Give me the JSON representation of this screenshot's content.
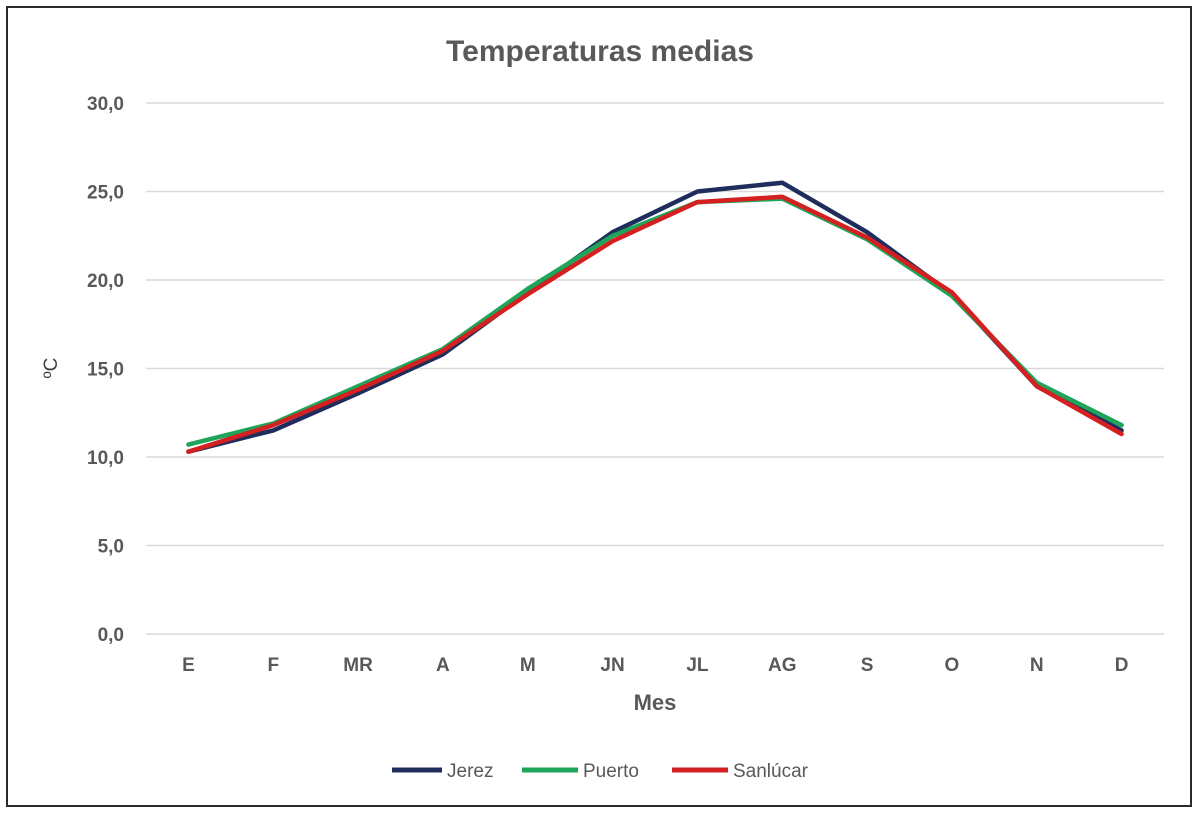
{
  "chart_data": {
    "type": "line",
    "title": "Temperaturas medias",
    "xlabel": "Mes",
    "ylabel": "ºC",
    "categories": [
      "E",
      "F",
      "MR",
      "A",
      "M",
      "JN",
      "JL",
      "AG",
      "S",
      "O",
      "N",
      "D"
    ],
    "ylim": [
      0,
      30
    ],
    "yticks": [
      0,
      5,
      10,
      15,
      20,
      25,
      30
    ],
    "ytick_labels": [
      "0,0",
      "5,0",
      "10,0",
      "15,0",
      "20,0",
      "25,0",
      "30,0"
    ],
    "grid": true,
    "legend_position": "bottom",
    "series": [
      {
        "name": "Jerez",
        "color": "#1f2d5c",
        "values": [
          10.3,
          11.5,
          13.6,
          15.8,
          19.3,
          22.7,
          25.0,
          25.5,
          22.7,
          19.2,
          14.0,
          11.5
        ]
      },
      {
        "name": "Puerto",
        "color": "#1fa55a",
        "values": [
          10.7,
          11.9,
          14.0,
          16.1,
          19.5,
          22.5,
          24.4,
          24.6,
          22.3,
          19.1,
          14.2,
          11.8
        ]
      },
      {
        "name": "Sanlúcar",
        "color": "#d42020",
        "values": [
          10.3,
          11.8,
          13.8,
          16.0,
          19.2,
          22.2,
          24.4,
          24.7,
          22.4,
          19.3,
          14.0,
          11.3
        ]
      }
    ]
  }
}
